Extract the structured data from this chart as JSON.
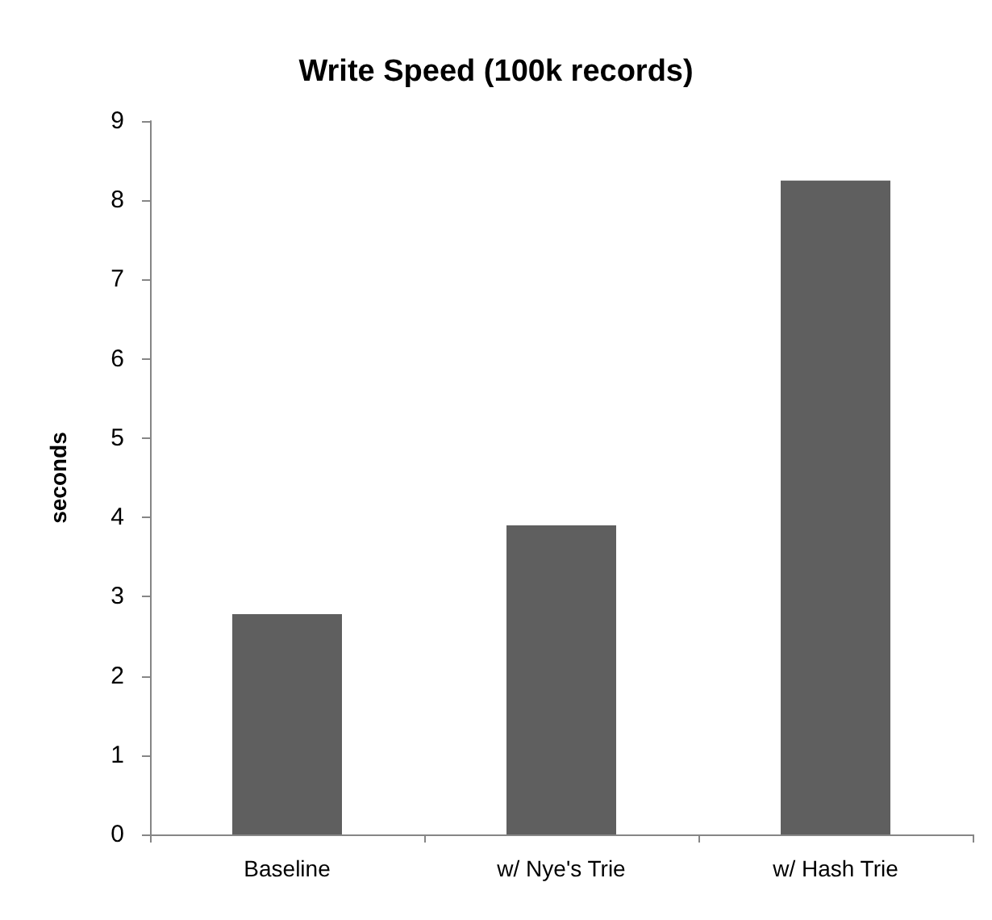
{
  "chart_data": {
    "type": "bar",
    "title": "Write Speed (100k records)",
    "ylabel": "seconds",
    "categories": [
      "Baseline",
      "w/ Nye's Trie",
      "w/ Hash Trie"
    ],
    "values": [
      2.78,
      3.9,
      8.25
    ],
    "color": "#5f5f5f",
    "ylim": [
      0,
      9
    ],
    "yticks": [
      0,
      1,
      2,
      3,
      4,
      5,
      6,
      7,
      8,
      9
    ],
    "grid": false
  }
}
